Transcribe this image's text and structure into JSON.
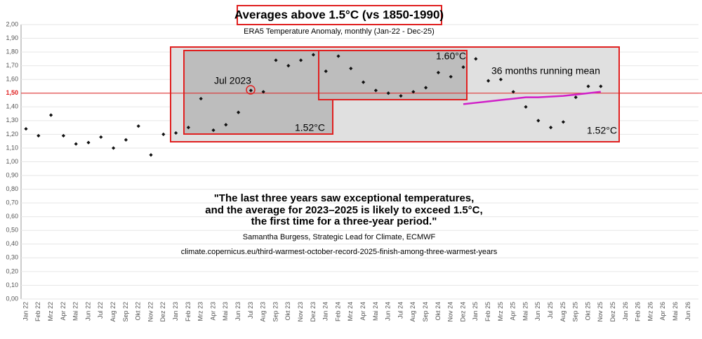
{
  "chart_data": {
    "type": "scatter",
    "title": "Averages above 1.5°C (vs 1850-1990)",
    "subtitle": "ERA5 Temperature Anomaly, monthly (Jan-22 - Dec-25)",
    "categories": [
      "Jan 22",
      "Feb 22",
      "Mrz 22",
      "Apr 22",
      "Mai 22",
      "Jun 22",
      "Jul 22",
      "Aug 22",
      "Sep 22",
      "Okt 22",
      "Nov 22",
      "Dez 22",
      "Jan 23",
      "Feb 23",
      "Mrz 23",
      "Apr 23",
      "Mai 23",
      "Jun 23",
      "Jul 23",
      "Aug 23",
      "Sep 23",
      "Okt 23",
      "Nov 23",
      "Dez 23",
      "Jan 24",
      "Feb 24",
      "Mrz 24",
      "Apr 24",
      "Mai 24",
      "Jun 24",
      "Jul 24",
      "Aug 24",
      "Sep 24",
      "Okt 24",
      "Nov 24",
      "Dez 24",
      "Jan 25",
      "Feb 25",
      "Mrz 25",
      "Apr 25",
      "Mai 25",
      "Jun 25",
      "Jul 25",
      "Aug 25",
      "Sep 25",
      "Okt 25",
      "Nov 25",
      "Dez 25",
      "Jan 26",
      "Feb 26",
      "Mrz 26",
      "Apr 26",
      "Mai 26",
      "Jun 26"
    ],
    "series": [
      {
        "color": "#111111",
        "values": [
          1.24,
          1.19,
          1.34,
          1.19,
          1.13,
          1.14,
          1.18,
          1.1,
          1.16,
          1.26,
          1.05,
          1.2,
          1.21,
          1.25,
          1.46,
          1.23,
          1.27,
          1.36,
          1.52,
          1.51,
          1.74,
          1.7,
          1.74,
          1.78,
          1.66,
          1.77,
          1.68,
          1.58,
          1.52,
          1.5,
          1.48,
          1.51,
          1.54,
          1.65,
          1.62,
          1.69,
          1.75,
          1.59,
          1.6,
          1.51,
          1.4,
          1.3,
          1.25,
          1.29,
          1.47,
          1.55,
          1.55,
          null,
          null,
          null,
          null,
          null,
          null,
          null
        ]
      },
      {
        "name": "36 months running mean",
        "color": "#d020c8",
        "values": [
          null,
          null,
          null,
          null,
          null,
          null,
          null,
          null,
          null,
          null,
          null,
          null,
          null,
          null,
          null,
          null,
          null,
          null,
          null,
          null,
          null,
          null,
          null,
          null,
          null,
          null,
          null,
          null,
          null,
          null,
          null,
          null,
          null,
          null,
          null,
          1.42,
          1.43,
          1.44,
          1.45,
          1.46,
          1.47,
          1.47,
          1.475,
          1.48,
          1.49,
          1.5,
          1.51,
          null,
          null,
          null,
          null,
          null,
          null,
          null
        ]
      }
    ],
    "ylim": [
      0,
      2
    ],
    "yticks": [
      {
        "value": 0,
        "label": "0,00"
      },
      {
        "value": 0.1,
        "label": "0,10"
      },
      {
        "value": 0.2,
        "label": "0,20"
      },
      {
        "value": 0.3,
        "label": "0,30"
      },
      {
        "value": 0.4,
        "label": "0,40"
      },
      {
        "value": 0.5,
        "label": "0,50"
      },
      {
        "value": 0.6,
        "label": "0,60"
      },
      {
        "value": 0.7,
        "label": "0,70"
      },
      {
        "value": 0.8,
        "label": "0,80"
      },
      {
        "value": 0.9,
        "label": "0,90"
      },
      {
        "value": 1,
        "label": "1,00"
      },
      {
        "value": 1.1,
        "label": "1,10"
      },
      {
        "value": 1.2,
        "label": "1,20"
      },
      {
        "value": 1.3,
        "label": "1,30"
      },
      {
        "value": 1.4,
        "label": "1,40"
      },
      {
        "value": 1.5,
        "label": "1,50"
      },
      {
        "value": 1.6,
        "label": "1,60"
      },
      {
        "value": 1.7,
        "label": "1,70"
      },
      {
        "value": 1.8,
        "label": "1,80"
      },
      {
        "value": 1.9,
        "label": "1,90"
      },
      {
        "value": 2,
        "label": "2,00"
      }
    ],
    "grid": true,
    "reference_line": {
      "value": 1.5,
      "color": "#e02020"
    },
    "annotations": [
      "Jul 2023",
      "1.52°C",
      "1.60°C",
      "1.52°C"
    ],
    "quote": [
      "\"The last three years saw exceptional temperatures,",
      "and the average for 2023–2025 is likely to exceed 1.5°C,",
      "the first time for a three-year period.\""
    ],
    "attribution": "Samantha Burgess, Strategic Lead for Climate, ECMWF",
    "source": "climate.copernicus.eu/third-warmest-october-record-2025-finish-among-three-warmest-years"
  }
}
